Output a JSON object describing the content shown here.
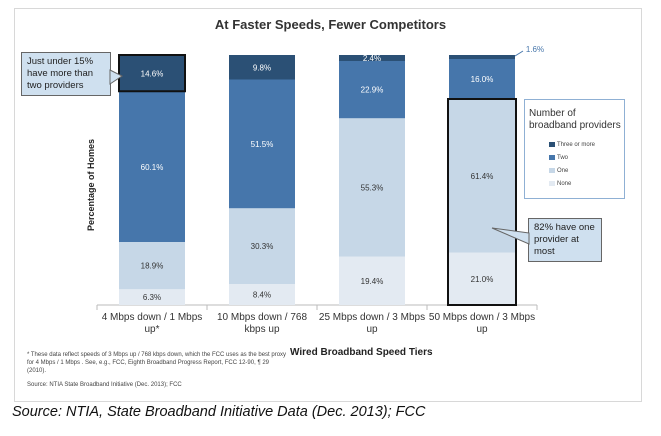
{
  "chart_data": {
    "type": "stacked-bar",
    "title": "At Faster Speeds, Fewer Competitors",
    "xlabel": "Wired Broadband Speed Tiers",
    "ylabel": "Percentage of Homes",
    "ylim": [
      0,
      100
    ],
    "categories": [
      "4 Mbps down / 1 Mbps up*",
      "10 Mbps down / 768 kbps up",
      "25 Mbps down / 3 Mbps up",
      "50 Mbps down / 3 Mbps up"
    ],
    "series": [
      {
        "name": "None",
        "values": [
          6.3,
          8.4,
          19.4,
          21.0
        ],
        "labels": [
          "6.3%",
          "8.4%",
          "19.4%",
          "21.0%"
        ],
        "color": "#e3eaf2"
      },
      {
        "name": "One",
        "values": [
          18.9,
          30.3,
          55.3,
          61.4
        ],
        "labels": [
          "18.9%",
          "30.3%",
          "55.3%",
          "61.4%"
        ],
        "color": "#c6d7e7"
      },
      {
        "name": "Two",
        "values": [
          60.1,
          51.5,
          22.9,
          16.0
        ],
        "labels": [
          "60.1%",
          "51.5%",
          "22.9%",
          "16.0%"
        ],
        "color": "#4676ab"
      },
      {
        "name": "Three or more",
        "values": [
          14.6,
          9.8,
          2.4,
          1.6
        ],
        "labels": [
          "14.6%",
          "9.8%",
          "2.4%",
          "1.6%"
        ],
        "color": "#2b5075"
      }
    ],
    "legend": {
      "title": "Number of broadband providers",
      "placement": "right"
    },
    "grid": false
  },
  "annotations": {
    "left_callout": "Just under 15% have more than two providers",
    "right_callout": "82% have one provider at most"
  },
  "footnote": "* These data reflect speeds of 3 Mbps up / 768 kbps down, which the FCC uses as the best proxy for 4 Mbps / 1 Mbps . See, e.g., FCC, Eighth Broadband Progress Report, FCC 12-90, ¶ 29 (2010).",
  "chart_source": "Source:  NTIA State Broadband Initiative (Dec. 2013); FCC",
  "caption": "Source: NTIA, State Broadband Initiative Data (Dec. 2013); FCC"
}
